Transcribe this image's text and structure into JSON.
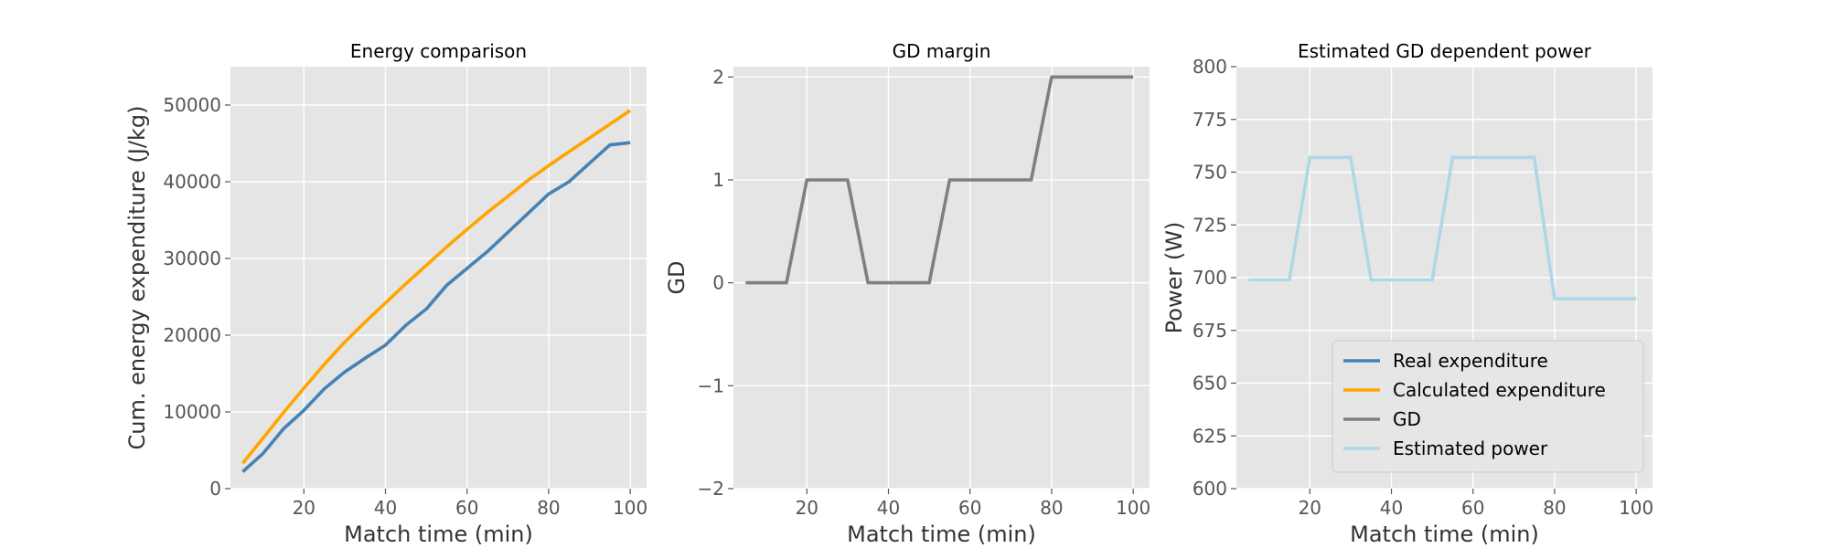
{
  "chart_data": [
    {
      "type": "line",
      "title": "Energy comparison",
      "xlabel": "Match time (min)",
      "ylabel": "Cum. energy expenditure (J/kg)",
      "xlim": [
        2,
        104
      ],
      "ylim": [
        0,
        55000
      ],
      "xticks": [
        20,
        40,
        60,
        80,
        100
      ],
      "yticks": [
        0,
        10000,
        20000,
        30000,
        40000,
        50000
      ],
      "grid": true,
      "series": [
        {
          "name": "Real expenditure",
          "color": "#4682b4",
          "x": [
            5,
            10,
            15,
            20,
            25,
            30,
            35,
            40,
            45,
            50,
            55,
            60,
            65,
            70,
            75,
            80,
            85,
            90,
            95,
            100
          ],
          "y": [
            2200,
            4600,
            7800,
            10200,
            13000,
            15200,
            17000,
            18700,
            21300,
            23400,
            26500,
            28700,
            30900,
            33400,
            35900,
            38400,
            40000,
            42400,
            44800,
            45100
          ]
        },
        {
          "name": "Calculated expenditure",
          "color": "#ffa500",
          "x": [
            5,
            10,
            15,
            20,
            25,
            30,
            35,
            40,
            45,
            50,
            55,
            60,
            65,
            70,
            75,
            80,
            85,
            90,
            95,
            100
          ],
          "y": [
            3300,
            6600,
            9900,
            13100,
            16200,
            19100,
            21700,
            24200,
            26700,
            29100,
            31500,
            33800,
            36000,
            38100,
            40200,
            42100,
            43900,
            45700,
            47500,
            49300
          ]
        }
      ]
    },
    {
      "type": "line",
      "title": "GD margin",
      "xlabel": "Match time (min)",
      "ylabel": "GD",
      "xlim": [
        2,
        104
      ],
      "ylim": [
        -2,
        2.1
      ],
      "xticks": [
        20,
        40,
        60,
        80,
        100
      ],
      "yticks": [
        -2,
        -1,
        0,
        1,
        2
      ],
      "ytick_labels": [
        "−2",
        "−1",
        "0",
        "1",
        "2"
      ],
      "grid": true,
      "series": [
        {
          "name": "GD",
          "color": "#808080",
          "x": [
            5,
            10,
            15,
            20,
            25,
            30,
            35,
            40,
            45,
            50,
            55,
            60,
            65,
            70,
            75,
            80,
            85,
            90,
            95,
            100
          ],
          "y": [
            0,
            0,
            0,
            1,
            1,
            1,
            0,
            0,
            0,
            0,
            1,
            1,
            1,
            1,
            1,
            2,
            2,
            2,
            2,
            2
          ]
        }
      ]
    },
    {
      "type": "line",
      "title": "Estimated GD dependent power",
      "xlabel": "Match time (min)",
      "ylabel": "Power (W)",
      "xlim": [
        2,
        104
      ],
      "ylim": [
        600,
        800
      ],
      "xticks": [
        20,
        40,
        60,
        80,
        100
      ],
      "yticks": [
        600,
        625,
        650,
        675,
        700,
        725,
        750,
        775,
        800
      ],
      "grid": true,
      "legend_placement": "lower-right",
      "series": [
        {
          "name": "Estimated power",
          "color": "#add8e6",
          "x": [
            5,
            10,
            15,
            20,
            25,
            30,
            35,
            40,
            45,
            50,
            55,
            60,
            65,
            70,
            75,
            80,
            85,
            90,
            95,
            100
          ],
          "y": [
            699,
            699,
            699,
            757,
            757,
            757,
            699,
            699,
            699,
            699,
            757,
            757,
            757,
            757,
            757,
            690,
            690,
            690,
            690,
            690
          ]
        }
      ]
    }
  ],
  "legend": {
    "entries": [
      {
        "label": "Real expenditure",
        "color": "#4682b4"
      },
      {
        "label": "Calculated expenditure",
        "color": "#ffa500"
      },
      {
        "label": "GD",
        "color": "#808080"
      },
      {
        "label": "Estimated power",
        "color": "#add8e6"
      }
    ]
  }
}
